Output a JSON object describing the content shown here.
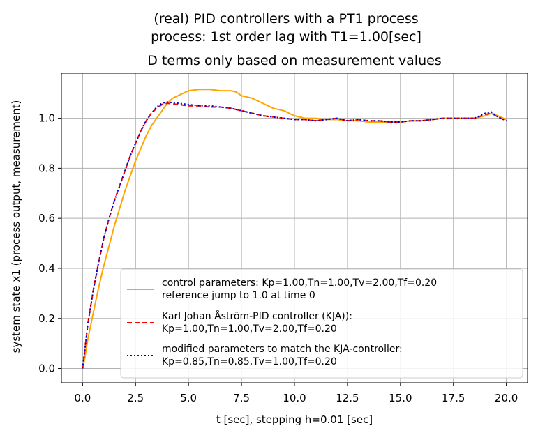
{
  "chart_data": {
    "type": "line",
    "suptitle_lines": [
      "(real) PID controllers with a PT1 process",
      "process: 1st order lag with T1=1.00[sec]"
    ],
    "title": "D terms only based on measurement values",
    "xlabel": "t [sec], stepping h=0.01 [sec]",
    "ylabel": "system state x1 (process output, measurement)",
    "xlim": [
      -1.0,
      21.0
    ],
    "ylim": [
      -0.057,
      1.18
    ],
    "xticks": [
      0.0,
      2.5,
      5.0,
      7.5,
      10.0,
      12.5,
      15.0,
      17.5,
      20.0
    ],
    "xtick_labels": [
      "0.0",
      "2.5",
      "5.0",
      "7.5",
      "10.0",
      "12.5",
      "15.0",
      "17.5",
      "20.0"
    ],
    "yticks": [
      0.0,
      0.2,
      0.4,
      0.6,
      0.8,
      1.0
    ],
    "ytick_labels": [
      "0.0",
      "0.2",
      "0.4",
      "0.6",
      "0.8",
      "1.0"
    ],
    "grid": true,
    "legend_position": "lower-right",
    "series": [
      {
        "legend_lines": [
          "control parameters: Kp=1.00,Tn=1.00,Tv=2.00,Tf=0.20",
          "reference jump to 1.0 at time 0"
        ],
        "color": "#ffa500",
        "style": "solid",
        "x": [
          0,
          0.1,
          0.25,
          0.5,
          0.75,
          1.0,
          1.25,
          1.5,
          1.75,
          2.0,
          2.25,
          2.5,
          2.75,
          3.0,
          3.25,
          3.5,
          3.75,
          4.0,
          4.25,
          4.5,
          4.75,
          5.0,
          5.5,
          6.0,
          6.5,
          7.0,
          7.25,
          7.5,
          8.0,
          8.5,
          9.0,
          9.5,
          10.0,
          10.5,
          11.0,
          11.5,
          12.0,
          12.5,
          13.0,
          13.5,
          14.0,
          14.5,
          15.0,
          15.5,
          16.0,
          16.5,
          17.0,
          17.5,
          18.0,
          18.5,
          19.0,
          19.3,
          19.6,
          20.0
        ],
        "y": [
          0.0,
          0.04,
          0.12,
          0.22,
          0.32,
          0.41,
          0.49,
          0.57,
          0.64,
          0.71,
          0.77,
          0.83,
          0.88,
          0.93,
          0.97,
          1.0,
          1.03,
          1.06,
          1.08,
          1.09,
          1.1,
          1.11,
          1.115,
          1.115,
          1.11,
          1.11,
          1.105,
          1.09,
          1.08,
          1.06,
          1.04,
          1.03,
          1.01,
          1.0,
          1.0,
          0.995,
          0.995,
          0.99,
          0.99,
          0.985,
          0.985,
          0.985,
          0.985,
          0.99,
          0.99,
          0.995,
          1.0,
          1.0,
          1.0,
          1.0,
          1.01,
          1.02,
          1.01,
          0.995
        ]
      },
      {
        "legend_lines": [
          "Karl Johan Åström-PID controller (KJA)):",
          "Kp=1.00,Tn=1.00,Tv=2.00,Tf=0.20"
        ],
        "color": "#ff0000",
        "style": "dashed",
        "x": [
          0,
          0.1,
          0.25,
          0.5,
          0.75,
          1.0,
          1.25,
          1.5,
          1.75,
          2.0,
          2.25,
          2.5,
          2.75,
          3.0,
          3.25,
          3.5,
          3.75,
          4.0,
          4.5,
          5.0,
          5.5,
          6.0,
          6.5,
          7.0,
          7.5,
          8.0,
          8.5,
          9.0,
          9.5,
          10.0,
          10.5,
          11.0,
          11.5,
          12.0,
          12.5,
          13.0,
          13.5,
          14.0,
          14.5,
          15.0,
          15.5,
          16.0,
          16.5,
          17.0,
          17.5,
          18.0,
          18.5,
          19.0,
          19.3,
          19.6,
          20.0
        ],
        "y": [
          0.0,
          0.07,
          0.18,
          0.31,
          0.42,
          0.52,
          0.6,
          0.67,
          0.73,
          0.79,
          0.85,
          0.9,
          0.95,
          0.99,
          1.02,
          1.04,
          1.055,
          1.06,
          1.055,
          1.05,
          1.05,
          1.045,
          1.045,
          1.04,
          1.03,
          1.02,
          1.01,
          1.005,
          1.0,
          0.995,
          0.995,
          0.99,
          0.995,
          1.0,
          0.99,
          0.995,
          0.99,
          0.99,
          0.985,
          0.985,
          0.99,
          0.99,
          0.995,
          1.0,
          1.0,
          1.0,
          1.0,
          1.015,
          1.02,
          1.005,
          0.99
        ]
      },
      {
        "legend_lines": [
          "modified parameters to match the KJA-controller:",
          "Kp=0.85,Tn=0.85,Tv=1.00,Tf=0.20"
        ],
        "color": "#0000cc",
        "style": "dotted",
        "x": [
          0,
          0.1,
          0.25,
          0.5,
          0.75,
          1.0,
          1.25,
          1.5,
          1.75,
          2.0,
          2.25,
          2.5,
          2.75,
          3.0,
          3.25,
          3.5,
          3.75,
          4.0,
          4.5,
          5.0,
          5.5,
          6.0,
          6.5,
          7.0,
          7.5,
          8.0,
          8.5,
          9.0,
          9.5,
          10.0,
          10.5,
          11.0,
          11.5,
          12.0,
          12.5,
          13.0,
          13.5,
          14.0,
          14.5,
          15.0,
          15.5,
          16.0,
          16.5,
          17.0,
          17.5,
          18.0,
          18.5,
          19.0,
          19.3,
          19.6,
          20.0
        ],
        "y": [
          0.0,
          0.07,
          0.18,
          0.31,
          0.42,
          0.52,
          0.6,
          0.67,
          0.73,
          0.79,
          0.85,
          0.9,
          0.95,
          0.99,
          1.02,
          1.045,
          1.06,
          1.065,
          1.06,
          1.055,
          1.05,
          1.05,
          1.045,
          1.04,
          1.03,
          1.02,
          1.01,
          1.005,
          1.0,
          0.995,
          0.995,
          0.99,
          0.995,
          1.0,
          0.99,
          0.995,
          0.99,
          0.99,
          0.985,
          0.985,
          0.99,
          0.99,
          0.995,
          1.0,
          1.0,
          1.0,
          1.0,
          1.02,
          1.025,
          1.005,
          0.99
        ]
      }
    ]
  }
}
